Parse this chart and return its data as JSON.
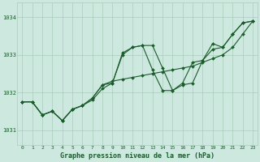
{
  "bg_color": "#cce8df",
  "grid_color": "#aaccbb",
  "line_color": "#1a5c2a",
  "xlabel": "Graphe pression niveau de la mer (hPa)",
  "xlim": [
    -0.5,
    23.5
  ],
  "ylim": [
    1030.6,
    1034.4
  ],
  "yticks": [
    1031,
    1032,
    1033,
    1034
  ],
  "xticks": [
    0,
    1,
    2,
    3,
    4,
    5,
    6,
    7,
    8,
    9,
    10,
    11,
    12,
    13,
    14,
    15,
    16,
    17,
    18,
    19,
    20,
    21,
    22,
    23
  ],
  "s1": [
    1031.75,
    1031.75,
    1031.4,
    1031.5,
    1031.25,
    1031.55,
    1031.65,
    1031.8,
    1032.1,
    1032.25,
    1033.0,
    1033.2,
    1033.25,
    1033.25,
    1032.65,
    1032.05,
    1032.2,
    1032.25,
    1032.85,
    1033.15,
    1033.2,
    1033.55,
    1033.85,
    1033.9
  ],
  "s2": [
    1031.75,
    1031.75,
    1031.4,
    1031.5,
    1031.25,
    1031.55,
    1031.65,
    1031.85,
    1032.2,
    1032.25,
    1033.05,
    1033.2,
    1033.25,
    1032.6,
    1032.05,
    1032.05,
    1032.25,
    1032.8,
    1032.85,
    1033.3,
    1033.2,
    1033.55,
    1033.85,
    1033.9
  ],
  "s3": [
    1031.75,
    1031.75,
    1031.4,
    1031.5,
    1031.25,
    1031.55,
    1031.65,
    1031.85,
    1032.2,
    1032.3,
    1032.35,
    1032.4,
    1032.45,
    1032.5,
    1032.55,
    1032.6,
    1032.65,
    1032.7,
    1032.8,
    1032.9,
    1033.0,
    1033.2,
    1033.55,
    1033.9
  ]
}
